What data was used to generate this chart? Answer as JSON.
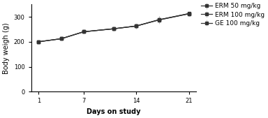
{
  "title": "",
  "xlabel": "Days on study",
  "ylabel": "Body weigh (g)",
  "x_ticks": [
    1,
    7,
    14,
    21
  ],
  "xlim": [
    0,
    22
  ],
  "ylim": [
    0,
    350
  ],
  "y_ticks": [
    0,
    100,
    200,
    300
  ],
  "series": [
    {
      "label": "ERM 50 mg/kg",
      "marker": "s",
      "x": [
        1,
        4,
        7,
        11,
        14,
        17,
        21
      ],
      "y": [
        200,
        212,
        240,
        252,
        263,
        288,
        313
      ],
      "yerr": [
        2,
        3,
        4,
        6,
        10,
        14,
        8
      ]
    },
    {
      "label": "ERM 100 mg/kg",
      "marker": "s",
      "x": [
        1,
        4,
        7,
        11,
        14,
        17,
        21
      ],
      "y": [
        200,
        212,
        240,
        252,
        263,
        288,
        312
      ],
      "yerr": [
        2,
        3,
        4,
        6,
        10,
        14,
        8
      ]
    },
    {
      "label": "GE 100 mg/kg",
      "marker": "s",
      "x": [
        1,
        4,
        7,
        11,
        14,
        17,
        21
      ],
      "y": [
        200,
        212,
        240,
        252,
        263,
        287,
        312
      ],
      "yerr": [
        2,
        3,
        4,
        6,
        10,
        14,
        8
      ]
    }
  ],
  "line_color": "#333333",
  "error_bar_color": "#bbbbbb",
  "background_color": "#ffffff",
  "font_size": 7,
  "legend_font_size": 6.5,
  "figsize": [
    3.84,
    1.69
  ],
  "dpi": 100
}
